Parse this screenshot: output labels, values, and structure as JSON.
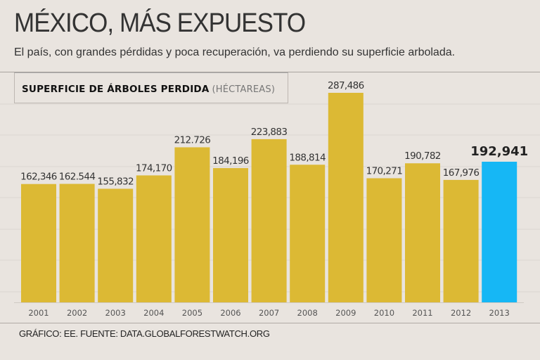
{
  "header": {
    "title": "MÉXICO, MÁS EXPUESTO",
    "subtitle": "El país, con grandes pérdidas y poca recuperación, va perdiendo su superficie arbolada."
  },
  "chart_data": {
    "type": "bar",
    "title": "SUPERFICIE DE ÁRBOLES PERDIDA",
    "unit_label": "(HÉCTAREAS)",
    "xlabel": "",
    "ylabel": "",
    "ylim": [
      0,
      300000
    ],
    "grid": true,
    "categories": [
      "2001",
      "2002",
      "2003",
      "2004",
      "2005",
      "2006",
      "2007",
      "2008",
      "2009",
      "2010",
      "2011",
      "2012",
      "2013"
    ],
    "values": [
      162346,
      162544,
      155832,
      174170,
      212726,
      184196,
      223883,
      188814,
      287486,
      170271,
      190782,
      167976,
      192941
    ],
    "value_labels": [
      "162,346",
      "162.544",
      "155,832",
      "174,170",
      "212.726",
      "184,196",
      "223,883",
      "188,814",
      "287,486",
      "170,271",
      "190,782",
      "167,976",
      "192,941"
    ],
    "highlight_index": 12,
    "colors": {
      "bar": "#dcb934",
      "highlight": "#16b7f5",
      "grid": "#dcd6d0"
    }
  },
  "footer": {
    "source": "GRÁFICO: EE. FUENTE: DATA.GLOBALFORESTWATCH.ORG"
  }
}
